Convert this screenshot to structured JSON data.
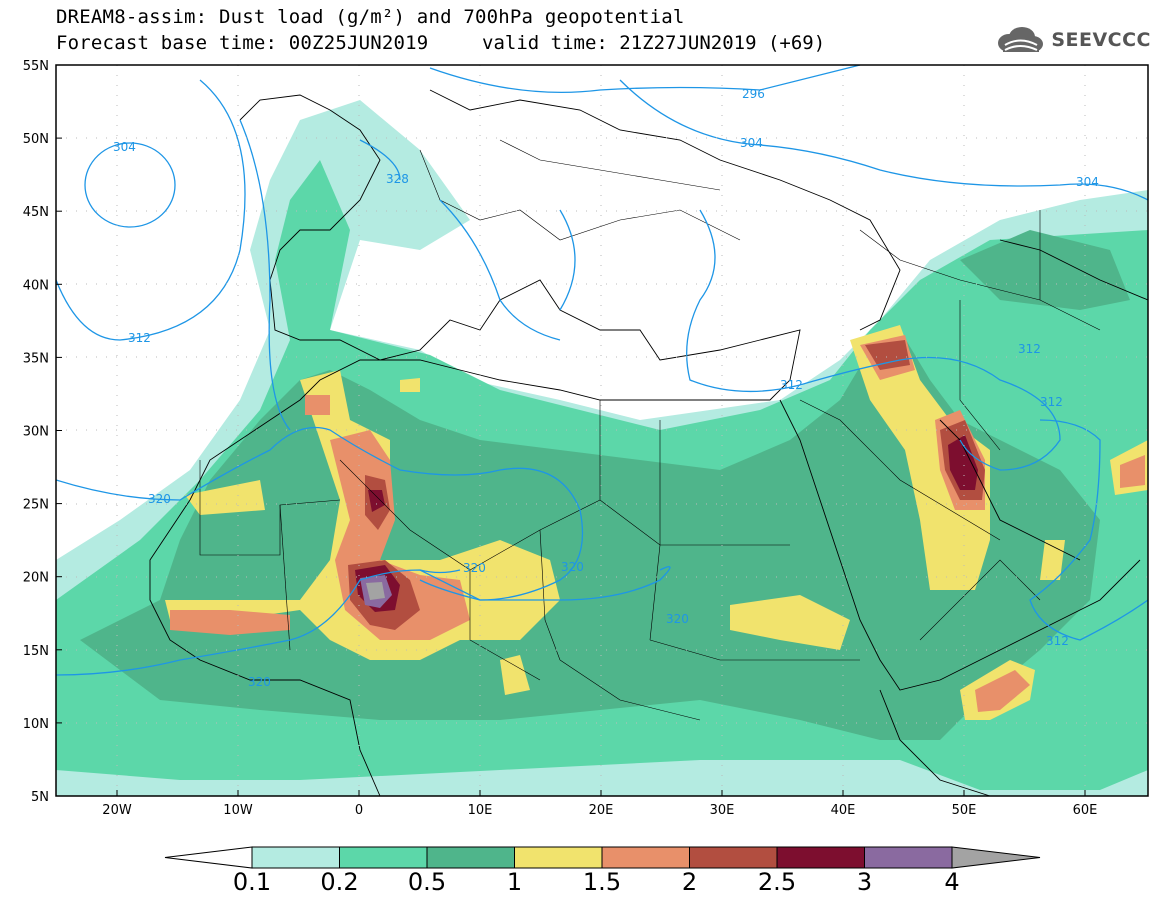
{
  "title": {
    "line1": "DREAM8-assim: Dust load (g/m²) and 700hPa geopotential",
    "line2_left": "Forecast base time: 00Z25JUN2019",
    "line2_right": "valid time: 21Z27JUN2019 (+69)"
  },
  "logo": {
    "text": "SEEVCCC",
    "icon": "cloud-icon"
  },
  "map": {
    "lon_ticks": [
      "20W",
      "10W",
      "0",
      "10E",
      "20E",
      "30E",
      "40E",
      "50E",
      "60E"
    ],
    "lat_ticks": [
      "55N",
      "50N",
      "45N",
      "40N",
      "35N",
      "30N",
      "25N",
      "20N",
      "15N",
      "10N",
      "5N"
    ],
    "contour_labels": [
      "304",
      "328",
      "296",
      "304",
      "304",
      "312",
      "312",
      "312",
      "312",
      "320",
      "320",
      "320",
      "320",
      "312",
      "320"
    ],
    "colors": {
      "contour": "#1e96e6",
      "border": "#000000"
    }
  },
  "legend": {
    "labels": [
      "0.1",
      "0.2",
      "0.5",
      "1",
      "1.5",
      "2",
      "2.5",
      "3",
      "4"
    ],
    "colors": [
      "#b4ebe1",
      "#5cd7a9",
      "#4fb58b",
      "#f1e36d",
      "#e8906a",
      "#b24e40",
      "#7d0e2f",
      "#8a6aa0",
      "#a3a3a3"
    ]
  }
}
